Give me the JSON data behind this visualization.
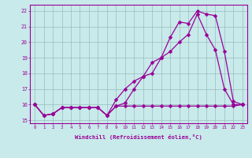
{
  "background_color": "#c8eaea",
  "grid_color": "#aaccaa",
  "line_color": "#990099",
  "xlabel": "Windchill (Refroidissement éolien,°C)",
  "xlim": [
    -0.5,
    23.5
  ],
  "ylim": [
    14.8,
    22.4
  ],
  "yticks": [
    15,
    16,
    17,
    18,
    19,
    20,
    21,
    22
  ],
  "xticks": [
    0,
    1,
    2,
    3,
    4,
    5,
    6,
    7,
    8,
    9,
    10,
    11,
    12,
    13,
    14,
    15,
    16,
    17,
    18,
    19,
    20,
    21,
    22,
    23
  ],
  "line1_x": [
    0,
    1,
    2,
    3,
    4,
    5,
    6,
    7,
    8,
    9,
    10,
    11,
    12,
    13,
    14,
    15,
    16,
    17,
    18,
    19,
    20,
    21,
    22,
    23
  ],
  "line1_y": [
    16.0,
    15.3,
    15.4,
    15.8,
    15.8,
    15.8,
    15.8,
    15.8,
    15.3,
    15.9,
    15.9,
    15.9,
    15.9,
    15.9,
    15.9,
    15.9,
    15.9,
    15.9,
    15.9,
    15.9,
    15.9,
    15.9,
    15.9,
    16.0
  ],
  "line2_x": [
    0,
    1,
    2,
    3,
    4,
    5,
    6,
    7,
    8,
    9,
    10,
    11,
    12,
    13,
    14,
    15,
    16,
    17,
    18,
    19,
    20,
    21,
    22,
    23
  ],
  "line2_y": [
    16.0,
    15.3,
    15.4,
    15.8,
    15.8,
    15.8,
    15.8,
    15.8,
    15.3,
    15.9,
    16.1,
    17.0,
    17.8,
    18.0,
    19.0,
    19.4,
    20.0,
    20.5,
    21.8,
    20.5,
    19.5,
    17.0,
    16.0,
    16.0
  ],
  "line3_x": [
    0,
    1,
    2,
    3,
    4,
    5,
    6,
    7,
    8,
    9,
    10,
    11,
    12,
    13,
    14,
    15,
    16,
    17,
    18,
    19,
    20,
    21,
    22,
    23
  ],
  "line3_y": [
    16.0,
    15.3,
    15.4,
    15.8,
    15.8,
    15.8,
    15.8,
    15.8,
    15.3,
    16.3,
    17.0,
    17.5,
    17.8,
    18.7,
    19.0,
    20.3,
    21.3,
    21.2,
    22.0,
    21.8,
    21.7,
    19.4,
    16.2,
    16.0
  ]
}
